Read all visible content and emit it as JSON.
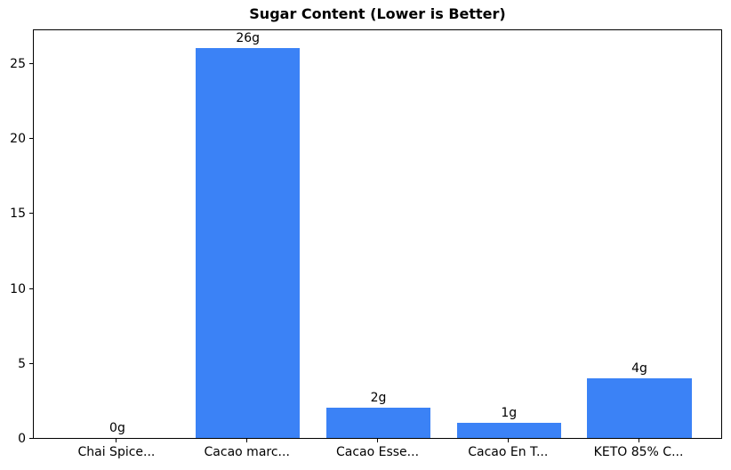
{
  "figure": {
    "background": "#ffffff"
  },
  "chart_data": {
    "type": "bar",
    "title": "Sugar Content (Lower is Better)",
    "categories": [
      "Chai Spice...",
      "Cacao marc...",
      "Cacao Esse...",
      "Cacao En T...",
      "KETO 85% C..."
    ],
    "values": [
      0,
      26,
      2,
      1,
      4
    ],
    "bar_labels": [
      "0g",
      "26g",
      "2g",
      "1g",
      "4g"
    ],
    "yticks": [
      0,
      5,
      10,
      15,
      20,
      25
    ],
    "ytick_labels": [
      "0",
      "5",
      "10",
      "15",
      "20",
      "25"
    ],
    "ylim": [
      0,
      27.3
    ],
    "xlabel": "",
    "ylabel": "",
    "grid": false,
    "legend": null,
    "bar_width_fraction": 0.8,
    "bar_color": "#3b82f6",
    "axis_color": "#000000",
    "text_color": "#000000"
  }
}
